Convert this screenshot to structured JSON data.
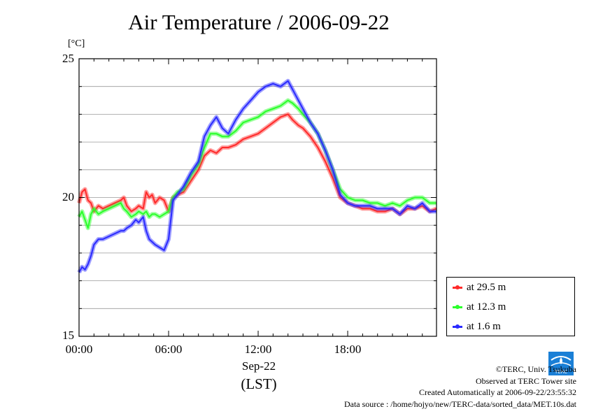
{
  "chart_data": {
    "type": "line",
    "title": "Air Temperature / 2006-09-22",
    "ylabel_unit": "[°C]",
    "ylim": [
      15,
      25
    ],
    "yticks": [
      "25",
      "20",
      "15"
    ],
    "xlim": [
      0,
      23.95
    ],
    "xticks": [
      "00:00",
      "06:00",
      "12:00",
      "18:00"
    ],
    "xlabel_date": "Sep-22",
    "xlabel_zone": "(LST)",
    "grid": "horizontal",
    "legend_position": "bottom-right",
    "series": [
      {
        "name": "at 29.5 m",
        "color": "#ff2a2a",
        "x": [
          0,
          0.2,
          0.4,
          0.6,
          0.8,
          1,
          1.3,
          1.6,
          2,
          2.4,
          2.8,
          3,
          3.2,
          3.5,
          3.8,
          4,
          4.3,
          4.5,
          4.7,
          4.9,
          5.1,
          5.4,
          5.7,
          6,
          6.3,
          6.6,
          7,
          7.5,
          8,
          8.4,
          8.8,
          9.2,
          9.6,
          10,
          10.5,
          11,
          11.5,
          12,
          12.5,
          13,
          13.5,
          14,
          14.3,
          14.7,
          15,
          15.5,
          16,
          16.5,
          17,
          17.5,
          18,
          18.5,
          19,
          19.5,
          20,
          20.5,
          21,
          21.5,
          22,
          22.5,
          23,
          23.5,
          23.95
        ],
        "y": [
          19.8,
          20.2,
          20.3,
          19.9,
          19.8,
          19.5,
          19.7,
          19.6,
          19.7,
          19.8,
          19.9,
          20.0,
          19.7,
          19.5,
          19.6,
          19.7,
          19.6,
          20.2,
          20.0,
          20.1,
          19.8,
          20.0,
          19.9,
          19.5,
          20.0,
          20.1,
          20.2,
          20.6,
          21.0,
          21.5,
          21.7,
          21.6,
          21.8,
          21.8,
          21.9,
          22.1,
          22.2,
          22.3,
          22.5,
          22.7,
          22.9,
          23.0,
          22.8,
          22.6,
          22.5,
          22.2,
          21.8,
          21.3,
          20.7,
          20.0,
          19.8,
          19.7,
          19.6,
          19.6,
          19.5,
          19.5,
          19.6,
          19.4,
          19.6,
          19.6,
          19.7,
          19.5,
          19.6
        ]
      },
      {
        "name": "at 12.3 m",
        "color": "#2aff2a",
        "x": [
          0,
          0.2,
          0.4,
          0.6,
          0.8,
          1,
          1.3,
          1.6,
          2,
          2.4,
          2.8,
          3,
          3.2,
          3.5,
          3.8,
          4,
          4.3,
          4.5,
          4.7,
          4.9,
          5.1,
          5.4,
          5.7,
          6,
          6.3,
          6.6,
          7,
          7.5,
          8,
          8.4,
          8.8,
          9.2,
          9.6,
          10,
          10.5,
          11,
          11.5,
          12,
          12.5,
          13,
          13.5,
          14,
          14.3,
          14.7,
          15,
          15.5,
          16,
          16.5,
          17,
          17.5,
          18,
          18.5,
          19,
          19.5,
          20,
          20.5,
          21,
          21.5,
          22,
          22.5,
          23,
          23.5,
          23.95
        ],
        "y": [
          19.3,
          19.5,
          19.2,
          18.9,
          19.4,
          19.6,
          19.4,
          19.5,
          19.6,
          19.7,
          19.8,
          19.6,
          19.5,
          19.3,
          19.4,
          19.5,
          19.4,
          19.5,
          19.3,
          19.4,
          19.4,
          19.3,
          19.4,
          19.5,
          20.0,
          20.2,
          20.3,
          20.8,
          21.2,
          21.8,
          22.3,
          22.3,
          22.2,
          22.2,
          22.4,
          22.7,
          22.8,
          22.9,
          23.1,
          23.2,
          23.3,
          23.5,
          23.4,
          23.2,
          23.0,
          22.7,
          22.3,
          21.7,
          21.0,
          20.3,
          20.0,
          19.9,
          19.9,
          19.8,
          19.8,
          19.7,
          19.8,
          19.7,
          19.9,
          20.0,
          20.0,
          19.8,
          19.8
        ]
      },
      {
        "name": "at 1.6 m",
        "color": "#2a2aff",
        "x": [
          0,
          0.2,
          0.4,
          0.6,
          0.8,
          1,
          1.3,
          1.6,
          2,
          2.4,
          2.8,
          3,
          3.2,
          3.5,
          3.8,
          4,
          4.3,
          4.5,
          4.7,
          4.9,
          5.1,
          5.4,
          5.7,
          6,
          6.3,
          6.6,
          7,
          7.5,
          8,
          8.4,
          8.8,
          9.2,
          9.6,
          10,
          10.5,
          11,
          11.5,
          12,
          12.5,
          13,
          13.5,
          14,
          14.3,
          14.7,
          15,
          15.5,
          16,
          16.5,
          17,
          17.5,
          18,
          18.5,
          19,
          19.5,
          20,
          20.5,
          21,
          21.5,
          22,
          22.5,
          23,
          23.5,
          23.95
        ],
        "y": [
          17.3,
          17.5,
          17.4,
          17.6,
          17.9,
          18.3,
          18.5,
          18.5,
          18.6,
          18.7,
          18.8,
          18.8,
          18.9,
          19.0,
          19.2,
          19.1,
          19.3,
          18.8,
          18.5,
          18.4,
          18.3,
          18.2,
          18.1,
          18.5,
          19.9,
          20.1,
          20.4,
          20.9,
          21.3,
          22.2,
          22.6,
          22.9,
          22.5,
          22.3,
          22.8,
          23.2,
          23.5,
          23.8,
          24.0,
          24.1,
          24.0,
          24.2,
          23.9,
          23.5,
          23.2,
          22.7,
          22.3,
          21.7,
          21.0,
          20.1,
          19.8,
          19.7,
          19.7,
          19.7,
          19.6,
          19.6,
          19.6,
          19.4,
          19.7,
          19.6,
          19.8,
          19.5,
          19.5
        ]
      }
    ]
  },
  "credits": {
    "copyright": "©TERC, Univ. Tsukuba",
    "observed": "Observed at TERC Tower site",
    "created": "Created Automatically at 2006-09-22/23:55:32",
    "source": "Data source : /home/hojyo/new/TERC-data/sorted_data/MET.10s.dat"
  },
  "logo": {
    "icon": "terc-logo-icon",
    "text": "TERC",
    "color": "#1a7fd6"
  }
}
